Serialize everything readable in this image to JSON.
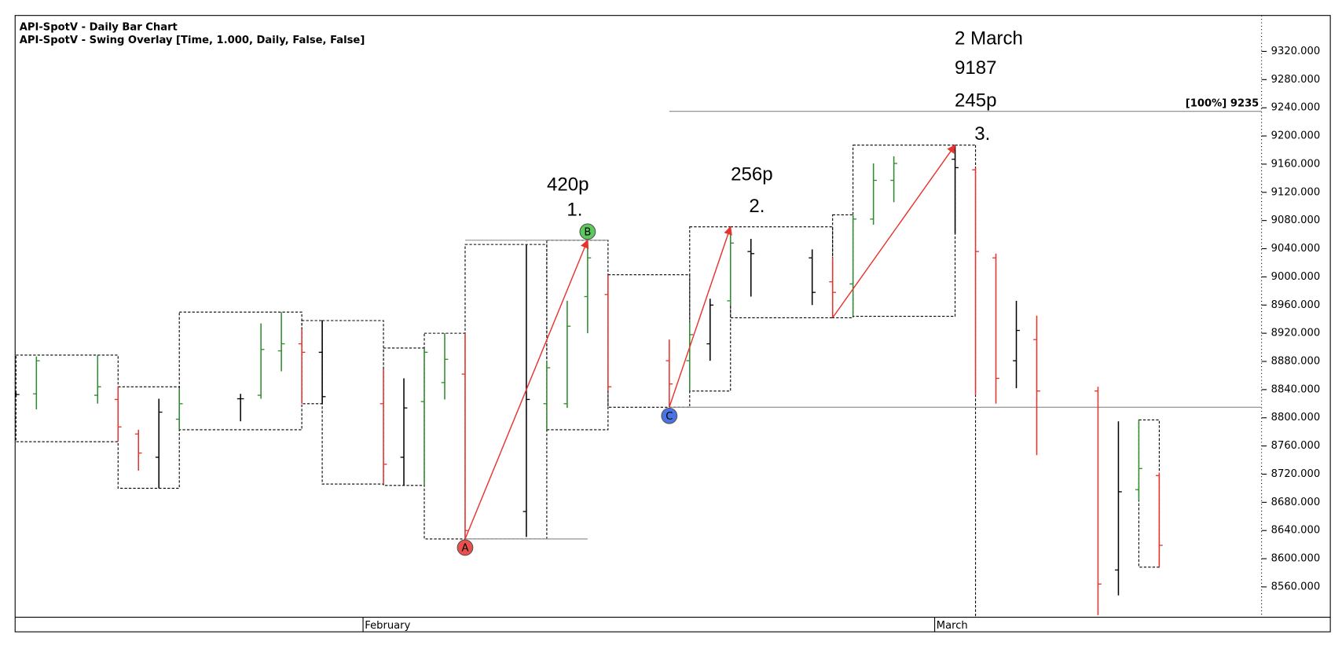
{
  "chart_data": {
    "type": "ohlc",
    "title": "API-SpotV - Daily Bar Chart",
    "subtitle": "API-SpotV - Swing Overlay [Time, 1.000, Daily, False, False]",
    "categories": [
      null,
      null,
      null,
      null,
      null,
      null,
      null,
      null,
      null,
      null,
      null,
      null,
      null,
      null,
      null,
      null,
      null,
      "February",
      null,
      null,
      null,
      null,
      null,
      null,
      null,
      null,
      null,
      null,
      null,
      null,
      null,
      null,
      null,
      null,
      null,
      null,
      null,
      null,
      null,
      null,
      null,
      null,
      null,
      null,
      null,
      "March",
      null,
      null,
      null,
      null,
      null,
      null,
      null,
      null,
      null,
      null,
      null,
      null,
      null,
      null,
      null,
      null
    ],
    "open": [
      8833,
      8834,
      null,
      null,
      8832,
      8826,
      8777,
      8744,
      8798,
      null,
      null,
      8827,
      8832,
      8895,
      8905,
      8893,
      null,
      null,
      8820,
      8744,
      8823,
      8850,
      8862,
      null,
      null,
      8667,
      8820,
      8820,
      8972,
      8975,
      null,
      null,
      8881,
      8881,
      8905,
      8966,
      9036,
      null,
      null,
      9027,
      8993,
      8990,
      9082,
      9137,
      null,
      null,
      9167,
      9152,
      9027,
      8881,
      8911,
      null,
      null,
      8838,
      8584,
      8698,
      8718,
      null,
      null,
      null,
      null,
      null
    ],
    "high": [
      8836,
      8887,
      null,
      null,
      8889,
      8844,
      8783,
      8827,
      8842,
      null,
      null,
      8834,
      8934,
      8950,
      8926,
      8938,
      null,
      null,
      8869,
      8856,
      8899,
      8920,
      8920,
      null,
      null,
      9046,
      8881,
      8966,
      9052,
      9003,
      null,
      null,
      8911,
      8936,
      8969,
      9071,
      9054,
      null,
      null,
      9039,
      9027,
      9088,
      9161,
      9171,
      null,
      null,
      9187,
      9155,
      9033,
      8966,
      8945,
      null,
      null,
      8844,
      8795,
      8797,
      8722,
      null,
      null,
      null,
      null,
      null
    ],
    "low": [
      8830,
      8812,
      null,
      null,
      8820,
      8766,
      8725,
      8700,
      8783,
      null,
      null,
      8795,
      8827,
      8866,
      8820,
      8820,
      null,
      null,
      8706,
      8704,
      8704,
      8826,
      8628,
      null,
      null,
      8631,
      8783,
      8814,
      8920,
      8838,
      null,
      null,
      8815,
      8838,
      8881,
      8960,
      8972,
      null,
      null,
      8960,
      8942,
      8944,
      9074,
      9106,
      null,
      null,
      9061,
      8832,
      8820,
      8842,
      8747,
      null,
      null,
      8520,
      8548,
      8683,
      8588,
      null,
      null,
      null,
      null,
      null
    ],
    "close": [
      8833,
      8881,
      null,
      null,
      8844,
      8787,
      8750,
      8808,
      8820,
      null,
      null,
      8827,
      8897,
      8905,
      8893,
      8830,
      null,
      null,
      8734,
      8814,
      8893,
      8883,
      8640,
      null,
      null,
      8826,
      8871,
      8930,
      9027,
      8844,
      null,
      null,
      8848,
      8918,
      8960,
      9048,
      9033,
      null,
      null,
      8978,
      8978,
      9082,
      9137,
      9161,
      null,
      null,
      9155,
      9036,
      8856,
      8924,
      8838,
      null,
      null,
      8564,
      8695,
      8728,
      8619,
      null,
      null,
      null,
      null,
      null
    ],
    "bar_colors": [
      "#000000",
      "#2e8b2e",
      null,
      null,
      "#2e8b2e",
      "#e8322d",
      "#e8322d",
      "#000000",
      "#2e8b2e",
      null,
      null,
      "#000000",
      "#2e8b2e",
      "#2e8b2e",
      "#e8322d",
      "#000000",
      null,
      null,
      "#e8322d",
      "#000000",
      "#2e8b2e",
      "#2e8b2e",
      "#e8322d",
      null,
      null,
      "#000000",
      "#2e8b2e",
      "#2e8b2e",
      "#2e8b2e",
      "#e8322d",
      null,
      null,
      "#e8322d",
      "#2e8b2e",
      "#000000",
      "#2e8b2e",
      "#000000",
      null,
      null,
      "#000000",
      "#e8322d",
      "#2e8b2e",
      "#2e8b2e",
      "#2e8b2e",
      null,
      null,
      "#000000",
      "#e8322d",
      "#e8322d",
      "#000000",
      "#e8322d",
      null,
      null,
      "#e8322d",
      "#000000",
      "#2e8b2e",
      "#e8322d",
      null,
      null,
      null,
      null,
      null
    ],
    "ylim": [
      8517,
      9371
    ],
    "yticks": [
      {
        "value": 8560,
        "label": "8560.000"
      },
      {
        "value": 8600,
        "label": "8600.000"
      },
      {
        "value": 8640,
        "label": "8640.000"
      },
      {
        "value": 8680,
        "label": "8680.000"
      },
      {
        "value": 8720,
        "label": "8720.000"
      },
      {
        "value": 8760,
        "label": "8760.000"
      },
      {
        "value": 8800,
        "label": "8800.000"
      },
      {
        "value": 8840,
        "label": "8840.000"
      },
      {
        "value": 8880,
        "label": "8880.000"
      },
      {
        "value": 8920,
        "label": "8920.000"
      },
      {
        "value": 8960,
        "label": "8960.000"
      },
      {
        "value": 9000,
        "label": "9000.000"
      },
      {
        "value": 9040,
        "label": "9040.000"
      },
      {
        "value": 9080,
        "label": "9080.000"
      },
      {
        "value": 9120,
        "label": "9120.000"
      },
      {
        "value": 9160,
        "label": "9160.000"
      },
      {
        "value": 9200,
        "label": "9200.000"
      },
      {
        "value": 9240,
        "label": "9240.000"
      },
      {
        "value": 9280,
        "label": "9280.000"
      },
      {
        "value": 9320,
        "label": "9320.000"
      }
    ],
    "levels": [
      9235,
      9052,
      8628,
      8815
    ],
    "level_label": "[100%] 9235",
    "markers": [
      "A",
      "B",
      "C"
    ],
    "marker_colors": [
      "#e8322d",
      "#3fbf3f",
      "#2a5ae0"
    ],
    "annotations": [
      "420p",
      "1.",
      "256p",
      "2.",
      "2 March",
      "9187",
      "245p",
      "3."
    ],
    "arrow_color": "#e8322d"
  }
}
